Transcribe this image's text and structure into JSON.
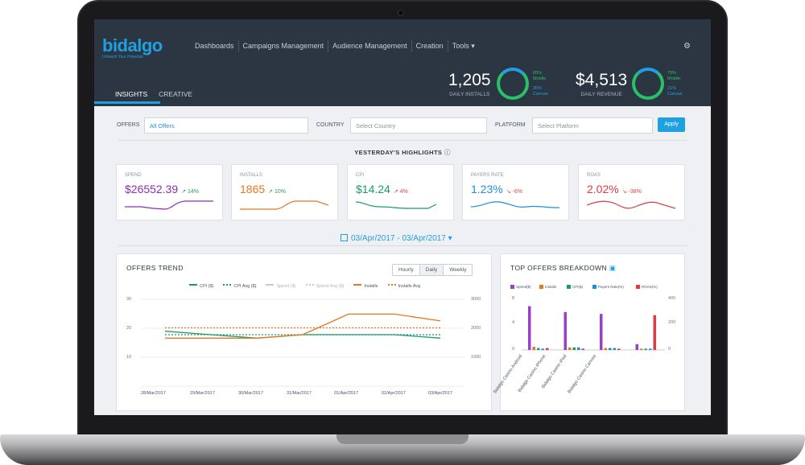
{
  "app": {
    "logo_text": "bidalgo",
    "logo_tagline": "Unleash Your Potential",
    "nav": [
      "Dashboards",
      "Campaigns Management",
      "Audience Management",
      "Creation",
      "Tools ▾"
    ],
    "tabs": [
      "INSIGHTS",
      "CREATIVE"
    ],
    "settings_icon": "gear-icon"
  },
  "kpis": {
    "installs": {
      "value": "1,205",
      "label": "DAILY INSTALLS",
      "mobile_pct": "65%",
      "mobile_label": "Mobile",
      "canvas_pct": "35%",
      "canvas_label": "Canvas"
    },
    "revenue": {
      "value": "$4,513",
      "label": "DAILY REVENUE",
      "mobile_pct": "79%",
      "mobile_label": "Mobile",
      "canvas_pct": "21%",
      "canvas_label": "Canvas"
    }
  },
  "filters": {
    "offers_label": "OFFERS",
    "offers_value": "All Offers",
    "country_label": "COUNTRY",
    "country_placeholder": "Select Country",
    "platform_label": "PLATFORM",
    "platform_placeholder": "Select Platform",
    "apply_label": "Apply"
  },
  "highlights": {
    "title": "YESTERDAY'S HIGHLIGHTS",
    "cards": [
      {
        "title": "SPEND",
        "value": "$26552.39",
        "delta": "↗ 14%",
        "color": "#8e2db0",
        "delta_color": "#27a35a"
      },
      {
        "title": "INSTALLS",
        "value": "1865",
        "delta": "↗ 10%",
        "color": "#e8761e",
        "delta_color": "#27a35a"
      },
      {
        "title": "CPI",
        "value": "$14.24",
        "delta": "↗ 4%",
        "color": "#1d9a6c",
        "delta_color": "#e04040"
      },
      {
        "title": "PAYERS RATE",
        "value": "1.23%",
        "delta": "↘ -6%",
        "color": "#1f8fd8",
        "delta_color": "#e04040"
      },
      {
        "title": "ROAS",
        "value": "2.02%",
        "delta": "↘ -38%",
        "color": "#e0393e",
        "delta_color": "#e04040"
      }
    ]
  },
  "date_range": "03/Apr/2017 - 03/Apr/2017 ▾",
  "offers_trend": {
    "title": "OFFERS TREND",
    "granularity": [
      "Hourly",
      "Daily",
      "Weekly"
    ],
    "selected": "Daily",
    "legend": [
      {
        "name": "CPI ($)",
        "color": "#1d9a6c"
      },
      {
        "name": "CPI Avg ($)",
        "color": "#1d9a6c"
      },
      {
        "name": "Spend ($)",
        "color": "#b0b6bd"
      },
      {
        "name": "Spend Avg ($)",
        "color": "#b0b6bd"
      },
      {
        "name": "Installs",
        "color": "#e8761e"
      },
      {
        "name": "Installs Avg",
        "color": "#e8761e"
      }
    ],
    "y_left_ticks": [
      "30",
      "20",
      "10"
    ],
    "y_right_ticks": [
      "3000",
      "2000",
      "1000"
    ],
    "x_ticks": [
      "28/Mar/2017",
      "29/Mar/2017",
      "30/Mar/2017",
      "31/Mar/2017",
      "01/Apr/2017",
      "02/Apr/2017",
      "03/Apr/2017"
    ]
  },
  "chart_data": [
    {
      "type": "line",
      "title": "OFFERS TREND",
      "x": [
        "28/Mar/2017",
        "29/Mar/2017",
        "30/Mar/2017",
        "31/Mar/2017",
        "01/Apr/2017",
        "02/Apr/2017",
        "03/Apr/2017"
      ],
      "series": [
        {
          "name": "CPI ($)",
          "axis": "left",
          "values": [
            16,
            15,
            14,
            15,
            15,
            15,
            14
          ],
          "color": "#1d9a6c"
        },
        {
          "name": "CPI Avg ($)",
          "axis": "left",
          "values": [
            15,
            15,
            15,
            15,
            15,
            15,
            15
          ],
          "color": "#1d9a6c",
          "style": "dotted"
        },
        {
          "name": "Installs",
          "axis": "right",
          "values": [
            1400,
            1400,
            1400,
            1500,
            2100,
            2100,
            1900
          ],
          "color": "#e8761e"
        },
        {
          "name": "Installs Avg",
          "axis": "right",
          "values": [
            1700,
            1700,
            1700,
            1700,
            1700,
            1700,
            1700
          ],
          "color": "#e8761e",
          "style": "dotted"
        }
      ],
      "ylim_left": [
        0,
        30
      ],
      "ylim_right": [
        0,
        3000
      ],
      "legend": "top"
    },
    {
      "type": "bar",
      "title": "TOP OFFERS BREAKDOWN",
      "categories": [
        "Bidalgo Casino Android",
        "Bidalgo Casino iPhone",
        "Bidalgo Casino iPad",
        "Bidalgo Casino Canvas"
      ],
      "series": [
        {
          "name": "Spend($)",
          "color": "#9b3fc8",
          "values": [
            6.8,
            5.9,
            5.6,
            0.9
          ]
        },
        {
          "name": "Installs",
          "color": "#e8761e",
          "values": [
            0.5,
            0.4,
            0.3,
            0.2
          ]
        },
        {
          "name": "CPI($)",
          "color": "#1d9a6c",
          "values": [
            0.3,
            0.4,
            0.3,
            0.2
          ]
        },
        {
          "name": "Payers Rate(%)",
          "color": "#1f8fd8",
          "values": [
            0.2,
            0.4,
            0.3,
            0.2
          ]
        },
        {
          "name": "ROAS(%)",
          "color": "#e0393e",
          "values": [
            0.3,
            0.2,
            0.2,
            5.4
          ]
        }
      ],
      "y_left_ticks": [
        "8",
        "4",
        "0"
      ],
      "y_right_ticks": [
        "400",
        "200",
        "0"
      ],
      "ylim": [
        0,
        8
      ],
      "legend": "top"
    }
  ],
  "breakdown": {
    "title": "TOP OFFERS BREAKDOWN",
    "legend": [
      "Spend($)",
      "Installs",
      "CPI($)",
      "Payers Rate(%)",
      "ROAS(%)"
    ],
    "categories": [
      "Bidalgo Casino Android",
      "Bidalgo Casino iPhone",
      "Bidalgo Casino iPad",
      "Bidalgo Casino Canvas"
    ]
  }
}
